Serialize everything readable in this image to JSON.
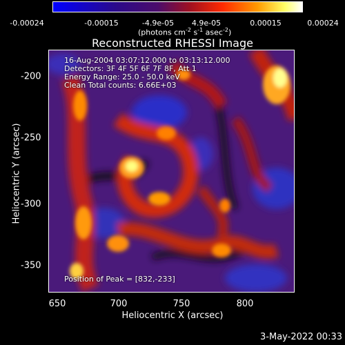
{
  "colorbar": {
    "ticks": [
      "-0.00024",
      "-0.00015",
      "-4.9e-05",
      "4.9e-05",
      "0.00015",
      "0.00024"
    ],
    "units_prefix": "(photons cm",
    "units_exp1": "-2",
    "units_mid": " s",
    "units_exp2": "-1",
    "units_mid2": " asec",
    "units_exp3": "-2",
    "units_suffix": ")",
    "gradient": [
      "#0000ff",
      "#2a0a8a",
      "#4b0c6b",
      "#a01020",
      "#ff2a00",
      "#ff9a00",
      "#ffff66",
      "#ffffff"
    ]
  },
  "title": "Reconstructed RHESSI Image",
  "info": {
    "line1": "16-Aug-2004 03:07:12.000 to 03:13:12.000",
    "line2": "Detectors: 3F 4F 5F 6F 7F 8F, Att 1",
    "line3": "Energy Range: 25.0 - 50.0 keV",
    "line4": "Clean     Total counts: 6.66E+03"
  },
  "peak_label": "Position of Peak = [832,-233]",
  "axes": {
    "xlabel": "Heliocentric X (arcsec)",
    "ylabel": "Heliocentric Y (arcsec)",
    "xticks": [
      "650",
      "700",
      "750",
      "800"
    ],
    "yticks": [
      "-200",
      "-250",
      "-300",
      "-350"
    ]
  },
  "footer_date": "3-May-2022 00:33"
}
